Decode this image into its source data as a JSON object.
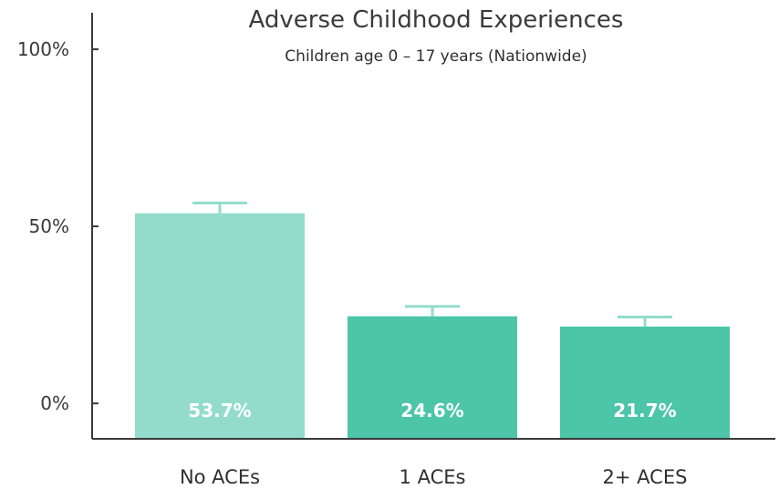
{
  "chart_data": {
    "type": "bar",
    "title": "Adverse Childhood Experiences",
    "subtitle": "Children age 0 – 17 years (Nationwide)",
    "xlabel": "",
    "ylabel": "",
    "categories": [
      "No ACEs",
      "1 ACEs",
      "2+ ACES"
    ],
    "values": [
      53.7,
      24.6,
      21.7
    ],
    "data_labels": [
      "53.7%",
      "24.6%",
      "21.7%"
    ],
    "error_bar_upper": [
      56.6,
      27.4,
      24.4
    ],
    "bar_colors": [
      "#93dccb",
      "#4cc5a9",
      "#4cc5a9"
    ],
    "errorbar_color": "#93dccb",
    "axis_color": "#3a3a3a",
    "yticks": [
      {
        "value": 0,
        "label": "0%"
      },
      {
        "value": 50,
        "label": "50%"
      },
      {
        "value": 100,
        "label": "100%"
      }
    ],
    "ylim": [
      -10,
      100
    ],
    "grid": false,
    "legend": "none"
  }
}
